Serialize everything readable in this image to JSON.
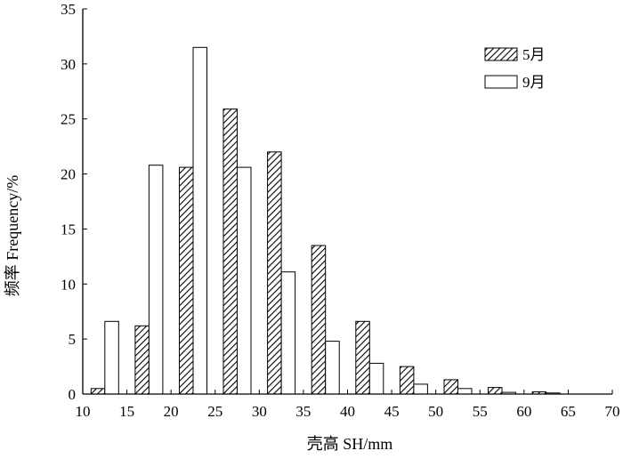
{
  "chart_data": {
    "type": "bar",
    "x": [
      12.5,
      17.5,
      22.5,
      27.5,
      32.5,
      37.5,
      42.5,
      47.5,
      52.5,
      57.5,
      62.5
    ],
    "series": [
      {
        "name": "5月",
        "pattern": "hatched",
        "values": [
          0.5,
          6.2,
          20.6,
          25.9,
          22.0,
          13.5,
          6.6,
          2.5,
          1.3,
          0.6,
          0.2
        ]
      },
      {
        "name": "9月",
        "pattern": "white",
        "values": [
          6.6,
          20.8,
          31.5,
          20.6,
          11.1,
          4.8,
          2.8,
          0.9,
          0.5,
          0.15,
          0.1
        ]
      }
    ],
    "xlabel": "壳高 SH/mm",
    "ylabel": "频率 Frequency/%",
    "xlim": [
      10,
      70
    ],
    "ylim": [
      0,
      35
    ],
    "xticks": [
      10,
      15,
      20,
      25,
      30,
      35,
      40,
      45,
      50,
      55,
      60,
      65,
      70
    ],
    "yticks": [
      0,
      5,
      10,
      15,
      20,
      25,
      30,
      35
    ],
    "grid": false,
    "legend_position": "top-right"
  },
  "colors": {
    "axis": "#000000",
    "hatch": "#000000",
    "fill_white": "#ffffff"
  }
}
